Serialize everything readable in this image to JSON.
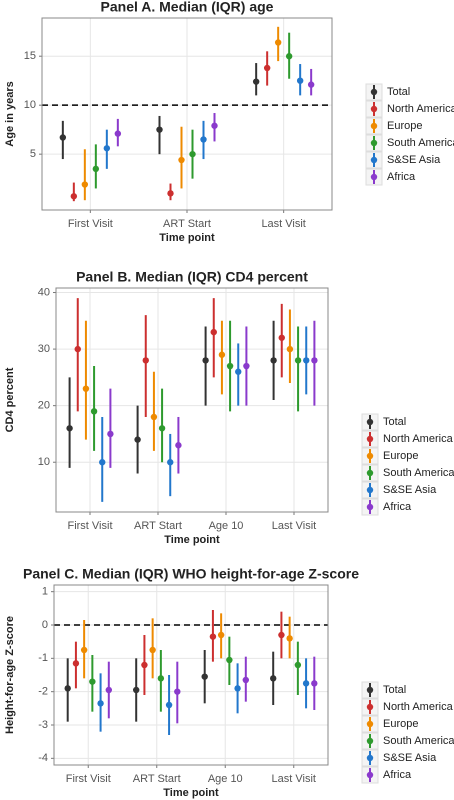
{
  "chart_data": [
    {
      "type": "pointrange",
      "title": "Panel A. Median (IQR) age",
      "x_label": "Time point",
      "y_label": "Age in years",
      "categories": [
        "First Visit",
        "ART Start",
        "Last Visit"
      ],
      "ylim": [
        -0.7,
        18.9
      ],
      "yticks": [
        5,
        10,
        15
      ],
      "hline": 10,
      "grid": true,
      "legend": "right",
      "series": [
        {
          "name": "Total",
          "color": "#333333",
          "values": [
            6.7,
            7.5,
            12.4
          ],
          "low": [
            4.5,
            5.0,
            11.0
          ],
          "high": [
            8.4,
            8.9,
            14.3
          ]
        },
        {
          "name": "North America",
          "color": "#cc2f2f",
          "values": [
            0.7,
            1.0,
            13.8
          ],
          "low": [
            0.2,
            0.3,
            12.0
          ],
          "high": [
            2.1,
            2.0,
            15.5
          ]
        },
        {
          "name": "Europe",
          "color": "#ee8a00",
          "values": [
            1.9,
            4.4,
            16.4
          ],
          "low": [
            0.3,
            1.5,
            14.5
          ],
          "high": [
            5.5,
            7.8,
            18.0
          ]
        },
        {
          "name": "South America",
          "color": "#2e9a2e",
          "values": [
            3.5,
            5.0,
            15.0
          ],
          "low": [
            1.5,
            2.5,
            12.7
          ],
          "high": [
            6.0,
            7.5,
            17.4
          ]
        },
        {
          "name": "S&SE Asia",
          "color": "#2277cc",
          "values": [
            5.6,
            6.5,
            12.5
          ],
          "low": [
            3.5,
            4.5,
            11.0
          ],
          "high": [
            7.5,
            8.4,
            14.2
          ]
        },
        {
          "name": "Africa",
          "color": "#8a3acc",
          "values": [
            7.1,
            7.9,
            12.1
          ],
          "low": [
            5.8,
            6.3,
            11.0
          ],
          "high": [
            8.6,
            9.2,
            13.7
          ]
        }
      ]
    },
    {
      "type": "pointrange",
      "title": "Panel B. Median (IQR) CD4 percent",
      "x_label": "Time point",
      "y_label": "CD4 percent",
      "categories": [
        "First Visit",
        "ART Start",
        "Age 10",
        "Last Visit"
      ],
      "ylim": [
        1.2,
        40.8
      ],
      "yticks": [
        10,
        20,
        30,
        40
      ],
      "grid": true,
      "legend": "right",
      "series": [
        {
          "name": "Total",
          "color": "#333333",
          "values": [
            16,
            14,
            28,
            28
          ],
          "low": [
            9,
            8,
            20,
            21
          ],
          "high": [
            25,
            20,
            34,
            35
          ]
        },
        {
          "name": "North America",
          "color": "#cc2f2f",
          "values": [
            30,
            28,
            33,
            32
          ],
          "low": [
            19,
            18,
            25,
            25
          ],
          "high": [
            39,
            36,
            39,
            38
          ]
        },
        {
          "name": "Europe",
          "color": "#ee8a00",
          "values": [
            23,
            18,
            29,
            30
          ],
          "low": [
            14,
            12,
            22,
            24
          ],
          "high": [
            35,
            26,
            35,
            37
          ]
        },
        {
          "name": "South America",
          "color": "#2e9a2e",
          "values": [
            19,
            16,
            27,
            28
          ],
          "low": [
            12,
            10,
            19,
            19
          ],
          "high": [
            27,
            23,
            35,
            34
          ]
        },
        {
          "name": "S&SE Asia",
          "color": "#2277cc",
          "values": [
            10,
            10,
            26,
            28
          ],
          "low": [
            3,
            4,
            20,
            22
          ],
          "high": [
            18,
            15,
            31,
            34
          ]
        },
        {
          "name": "Africa",
          "color": "#8a3acc",
          "values": [
            15,
            13,
            27,
            28
          ],
          "low": [
            9,
            8,
            20,
            20
          ],
          "high": [
            23,
            18,
            34,
            35
          ]
        }
      ]
    },
    {
      "type": "pointrange",
      "title": "Panel C. Median (IQR) WHO height-for-age Z-score",
      "x_label": "Time point",
      "y_label": "Height-for-age Z-score",
      "categories": [
        "First Visit",
        "ART Start",
        "Age 10",
        "Last Visit"
      ],
      "ylim": [
        -4.2,
        1.2
      ],
      "yticks": [
        -4,
        -3,
        -2,
        -1,
        0,
        1
      ],
      "hline": 0,
      "grid": true,
      "legend": "right",
      "series": [
        {
          "name": "Total",
          "color": "#333333",
          "values": [
            -1.9,
            -1.95,
            -1.55,
            -1.6
          ],
          "low": [
            -2.9,
            -2.9,
            -2.35,
            -2.4
          ],
          "high": [
            -1.0,
            -1.0,
            -0.75,
            -0.8
          ]
        },
        {
          "name": "North America",
          "color": "#cc2f2f",
          "values": [
            -1.15,
            -1.2,
            -0.35,
            -0.3
          ],
          "low": [
            -1.9,
            -2.1,
            -1.1,
            -1.0
          ],
          "high": [
            -0.5,
            -0.3,
            0.45,
            0.4
          ]
        },
        {
          "name": "Europe",
          "color": "#ee8a00",
          "values": [
            -0.75,
            -0.75,
            -0.3,
            -0.4
          ],
          "low": [
            -1.6,
            -1.6,
            -1.0,
            -1.0
          ],
          "high": [
            0.15,
            0.2,
            0.35,
            0.25
          ]
        },
        {
          "name": "South America",
          "color": "#2e9a2e",
          "values": [
            -1.7,
            -1.6,
            -1.05,
            -1.2
          ],
          "low": [
            -2.6,
            -2.6,
            -1.8,
            -2.1
          ],
          "high": [
            -0.9,
            -0.75,
            -0.35,
            -0.5
          ]
        },
        {
          "name": "S&SE Asia",
          "color": "#2277cc",
          "values": [
            -2.35,
            -2.4,
            -1.9,
            -1.75
          ],
          "low": [
            -3.2,
            -3.3,
            -2.65,
            -2.5
          ],
          "high": [
            -1.45,
            -1.5,
            -1.15,
            -1.0
          ]
        },
        {
          "name": "Africa",
          "color": "#8a3acc",
          "values": [
            -1.95,
            -2.0,
            -1.65,
            -1.75
          ],
          "low": [
            -2.8,
            -2.95,
            -2.3,
            -2.55
          ],
          "high": [
            -1.1,
            -1.1,
            -0.95,
            -0.95
          ]
        }
      ]
    }
  ]
}
